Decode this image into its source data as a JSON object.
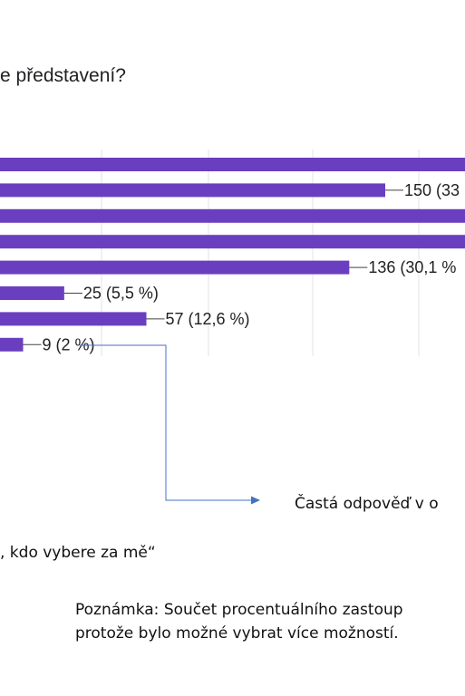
{
  "question": "e představení?",
  "chart_data": {
    "type": "bar",
    "orientation": "horizontal",
    "bar_color": "#6a3fbf",
    "grid": true,
    "bars": [
      {
        "value": null,
        "label": ""
      },
      {
        "value": 150,
        "label": "150 (33"
      },
      {
        "value": null,
        "label": ""
      },
      {
        "value": null,
        "label": ""
      },
      {
        "value": 136,
        "label": "136 (30,1 %"
      },
      {
        "value": 25,
        "label": "25 (5,5 %)"
      },
      {
        "value": 57,
        "label": "57 (12,6 %)"
      },
      {
        "value": 9,
        "label": "9 (2 %)"
      }
    ]
  },
  "callout": {
    "text": "Častá odpověď v o",
    "line_color": "#4472c4"
  },
  "quote": ", kdo vybere za mě“",
  "note": {
    "line1": "Poznámka: Součet procentuálního zastoup",
    "line2": "protože bylo možné vybrat více možností."
  }
}
